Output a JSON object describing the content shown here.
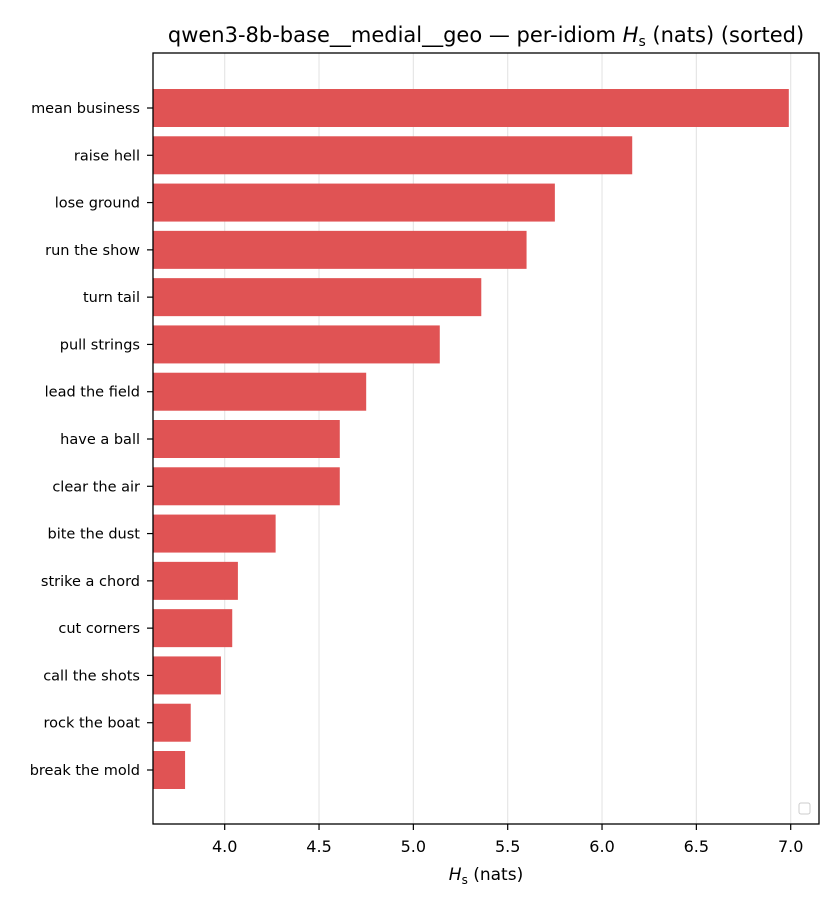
{
  "chart_data": {
    "type": "bar",
    "orientation": "horizontal",
    "title": "qwen3-8b-base__medial__geo — per-idiom Hₛ (nats) (sorted)",
    "title_parts": {
      "prefix": "qwen3-8b-base__medial__geo — per-idiom ",
      "symbol": "H",
      "subscript": "s",
      "suffix": " (nats) (sorted)"
    },
    "xlabel": "Hₛ (nats)",
    "xlabel_parts": {
      "symbol": "H",
      "subscript": "s",
      "suffix": " (nats)"
    },
    "ylabel": "",
    "categories": [
      "mean business",
      "raise hell",
      "lose ground",
      "run the show",
      "turn tail",
      "pull strings",
      "lead the field",
      "have a ball",
      "clear the air",
      "bite the dust",
      "strike a chord",
      "cut corners",
      "call the shots",
      "rock the boat",
      "break the mold"
    ],
    "values": [
      6.99,
      6.16,
      5.75,
      5.6,
      5.36,
      5.14,
      4.75,
      4.61,
      4.61,
      4.27,
      4.07,
      4.04,
      3.98,
      3.82,
      3.79
    ],
    "xlim": [
      3.62,
      7.15
    ],
    "xticks": [
      4.0,
      4.5,
      5.0,
      5.5,
      6.0,
      6.5,
      7.0
    ],
    "xtick_labels": [
      "4.0",
      "4.5",
      "5.0",
      "5.5",
      "6.0",
      "6.5",
      "7.0"
    ],
    "grid": "x-major",
    "legend": "lower-right (empty)",
    "bar_color": "#e05354",
    "grid_color": "#e6e6e6"
  }
}
